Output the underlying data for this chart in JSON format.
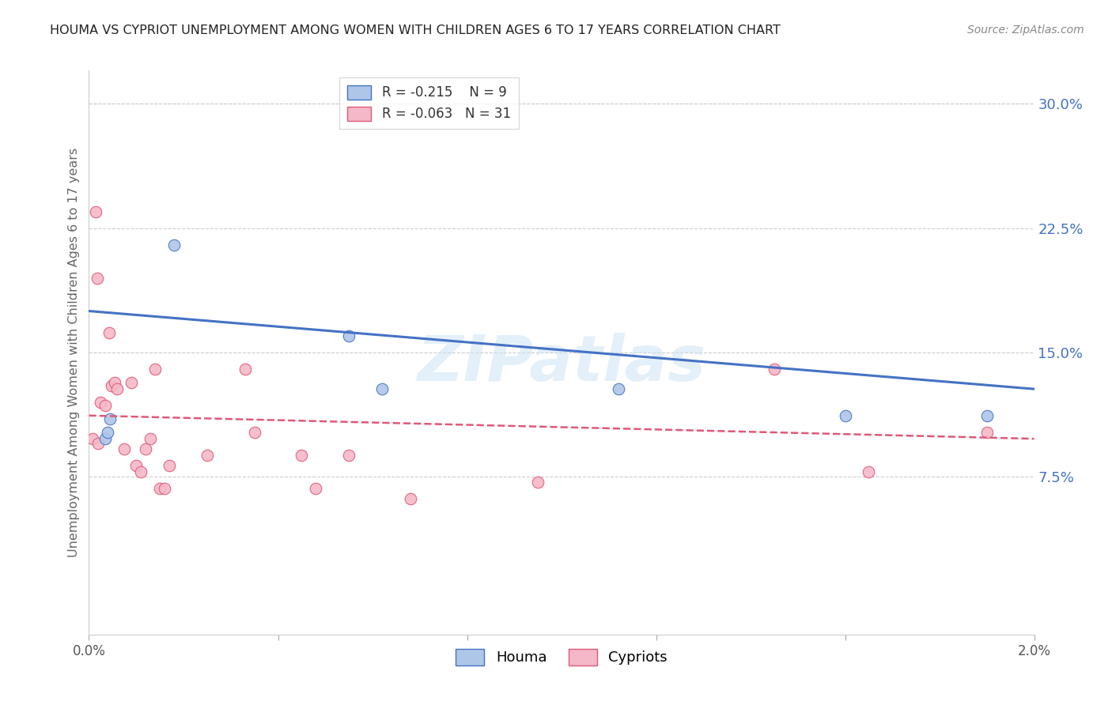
{
  "title": "HOUMA VS CYPRIOT UNEMPLOYMENT AMONG WOMEN WITH CHILDREN AGES 6 TO 17 YEARS CORRELATION CHART",
  "source": "Source: ZipAtlas.com",
  "ylabel": "Unemployment Among Women with Children Ages 6 to 17 years",
  "xlim": [
    0.0,
    0.02
  ],
  "ylim": [
    -0.02,
    0.32
  ],
  "xticks": [
    0.0,
    0.004,
    0.008,
    0.012,
    0.016,
    0.02
  ],
  "yticks_right": [
    0.075,
    0.15,
    0.225,
    0.3
  ],
  "yticklabels_right": [
    "7.5%",
    "15.0%",
    "22.5%",
    "30.0%"
  ],
  "houma_R": -0.215,
  "houma_N": 9,
  "cypriot_R": -0.063,
  "cypriot_N": 31,
  "houma_color": "#aec6e8",
  "cypriot_color": "#f4b8c8",
  "trend_houma_color": "#4472c4",
  "trend_cypriot_color": "#e05878",
  "legend_label_houma": "Houma",
  "legend_label_cypriot": "Cypriots",
  "houma_x": [
    0.00035,
    0.0004,
    0.00045,
    0.0018,
    0.0055,
    0.0062,
    0.0112,
    0.016,
    0.019
  ],
  "houma_y": [
    0.098,
    0.102,
    0.11,
    0.215,
    0.16,
    0.128,
    0.128,
    0.112,
    0.112
  ],
  "cypriot_x": [
    8e-05,
    0.00015,
    0.00018,
    0.0002,
    0.00025,
    0.00035,
    0.00042,
    0.00048,
    0.00055,
    0.0006,
    0.00075,
    0.0009,
    0.001,
    0.0011,
    0.0012,
    0.0013,
    0.0014,
    0.0015,
    0.0016,
    0.0017,
    0.0025,
    0.0033,
    0.0035,
    0.0045,
    0.0048,
    0.0055,
    0.0068,
    0.0095,
    0.0145,
    0.0165,
    0.019
  ],
  "cypriot_y": [
    0.098,
    0.235,
    0.195,
    0.095,
    0.12,
    0.118,
    0.162,
    0.13,
    0.132,
    0.128,
    0.092,
    0.132,
    0.082,
    0.078,
    0.092,
    0.098,
    0.14,
    0.068,
    0.068,
    0.082,
    0.088,
    0.14,
    0.102,
    0.088,
    0.068,
    0.088,
    0.062,
    0.072,
    0.14,
    0.078,
    0.102
  ],
  "trend_houma_x0": 0.0,
  "trend_houma_y0": 0.175,
  "trend_houma_x1": 0.02,
  "trend_houma_y1": 0.128,
  "trend_cypriot_x0": 0.0,
  "trend_cypriot_y0": 0.112,
  "trend_cypriot_x1": 0.02,
  "trend_cypriot_y1": 0.098,
  "watermark": "ZIPatlas",
  "grid_color": "#cccccc",
  "background_color": "#ffffff",
  "marker_size": 110
}
